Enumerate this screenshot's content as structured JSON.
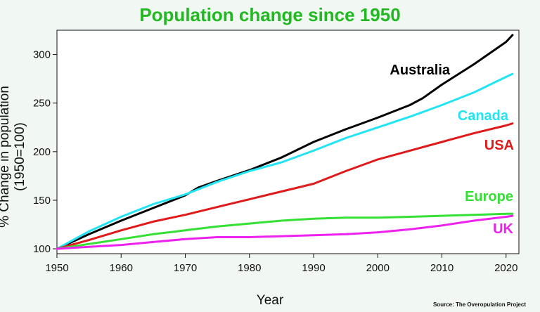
{
  "colors": {
    "background": "#f1f8f3",
    "title": "#22b822"
  },
  "chart_data": {
    "type": "line",
    "title": "Population change since 1950",
    "xlabel": "Year",
    "ylabel": "% Change in population (1950=100)",
    "source": "Source: The Overopulation Project",
    "xlim": [
      1950,
      2022
    ],
    "ylim": [
      95,
      325
    ],
    "xticks": [
      1950,
      1960,
      1970,
      1980,
      1990,
      2000,
      2010,
      2020
    ],
    "yticks": [
      100,
      150,
      200,
      250,
      300
    ],
    "grid": false,
    "legend": "inline labels",
    "series": [
      {
        "name": "Australia",
        "color": "#000000",
        "x": [
          1950,
          1955,
          1960,
          1965,
          1970,
          1972,
          1975,
          1980,
          1985,
          1990,
          1995,
          2000,
          2005,
          2007,
          2010,
          2015,
          2020,
          2021
        ],
        "y": [
          100,
          115,
          129,
          142,
          155,
          163,
          170,
          181,
          194,
          210,
          223,
          235,
          248,
          255,
          269,
          290,
          313,
          320
        ]
      },
      {
        "name": "Canada",
        "color": "#22e4f4",
        "x": [
          1950,
          1955,
          1960,
          1965,
          1970,
          1975,
          1980,
          1985,
          1990,
          1995,
          2000,
          2005,
          2010,
          2015,
          2020,
          2021
        ],
        "y": [
          100,
          118,
          133,
          146,
          156,
          169,
          180,
          189,
          201,
          214,
          225,
          236,
          248,
          261,
          277,
          280
        ]
      },
      {
        "name": "USA",
        "color": "#e01a1a",
        "x": [
          1950,
          1955,
          1960,
          1965,
          1970,
          1975,
          1980,
          1985,
          1990,
          1995,
          2000,
          2005,
          2010,
          2015,
          2020,
          2021
        ],
        "y": [
          100,
          109,
          119,
          128,
          135,
          143,
          151,
          159,
          167,
          180,
          192,
          201,
          210,
          219,
          227,
          229
        ]
      },
      {
        "name": "Europe",
        "color": "#33e033",
        "x": [
          1950,
          1955,
          1960,
          1965,
          1970,
          1975,
          1980,
          1985,
          1990,
          1995,
          2000,
          2005,
          2010,
          2015,
          2020,
          2021
        ],
        "y": [
          100,
          105,
          110,
          115,
          119,
          123,
          126,
          129,
          131,
          132,
          132,
          133,
          134,
          135,
          136,
          136
        ]
      },
      {
        "name": "UK",
        "color": "#ee22ee",
        "x": [
          1950,
          1955,
          1960,
          1965,
          1970,
          1975,
          1980,
          1985,
          1990,
          1995,
          2000,
          2005,
          2010,
          2015,
          2020,
          2021
        ],
        "y": [
          100,
          102,
          104,
          107,
          110,
          112,
          112,
          113,
          114,
          115,
          117,
          120,
          124,
          129,
          133,
          134
        ]
      }
    ]
  }
}
